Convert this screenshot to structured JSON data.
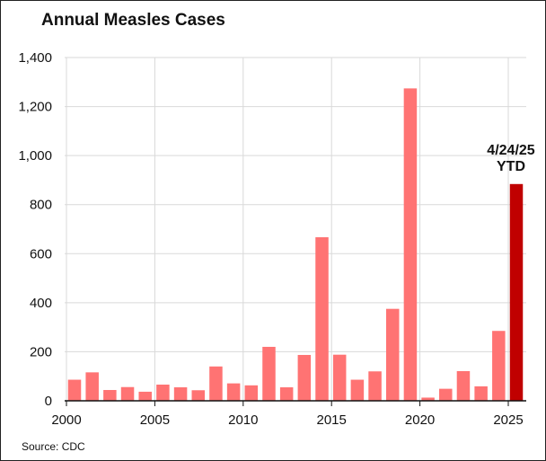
{
  "chart_data": {
    "type": "bar",
    "title": "Annual Measles Cases",
    "source": "Source: CDC",
    "categories": [
      "2000",
      "2001",
      "2002",
      "2003",
      "2004",
      "2005",
      "2006",
      "2007",
      "2008",
      "2009",
      "2010",
      "2011",
      "2012",
      "2013",
      "2014",
      "2015",
      "2016",
      "2017",
      "2018",
      "2019",
      "2020",
      "2021",
      "2022",
      "2023",
      "2024",
      "2025"
    ],
    "values": [
      86,
      116,
      44,
      56,
      37,
      66,
      55,
      43,
      140,
      71,
      63,
      220,
      55,
      187,
      667,
      188,
      86,
      120,
      375,
      1274,
      13,
      49,
      121,
      59,
      285,
      884
    ],
    "highlight_index": 25,
    "annotation": [
      "4/24/25",
      "YTD"
    ],
    "ylim": [
      0,
      1400
    ],
    "yticks": [
      0,
      200,
      400,
      600,
      800,
      1000,
      1200,
      1400
    ],
    "ytick_labels": [
      "0",
      "200",
      "400",
      "600",
      "800",
      "1,000",
      "1,200",
      "1,400"
    ],
    "xticks": [
      "2000",
      "2005",
      "2010",
      "2015",
      "2020",
      "2025"
    ],
    "xlabel": "",
    "ylabel": "",
    "grid": true,
    "colors": {
      "bar": "#ff7373",
      "highlight": "#c00000",
      "grid": "#d9d9d9",
      "axis": "#111111"
    }
  }
}
